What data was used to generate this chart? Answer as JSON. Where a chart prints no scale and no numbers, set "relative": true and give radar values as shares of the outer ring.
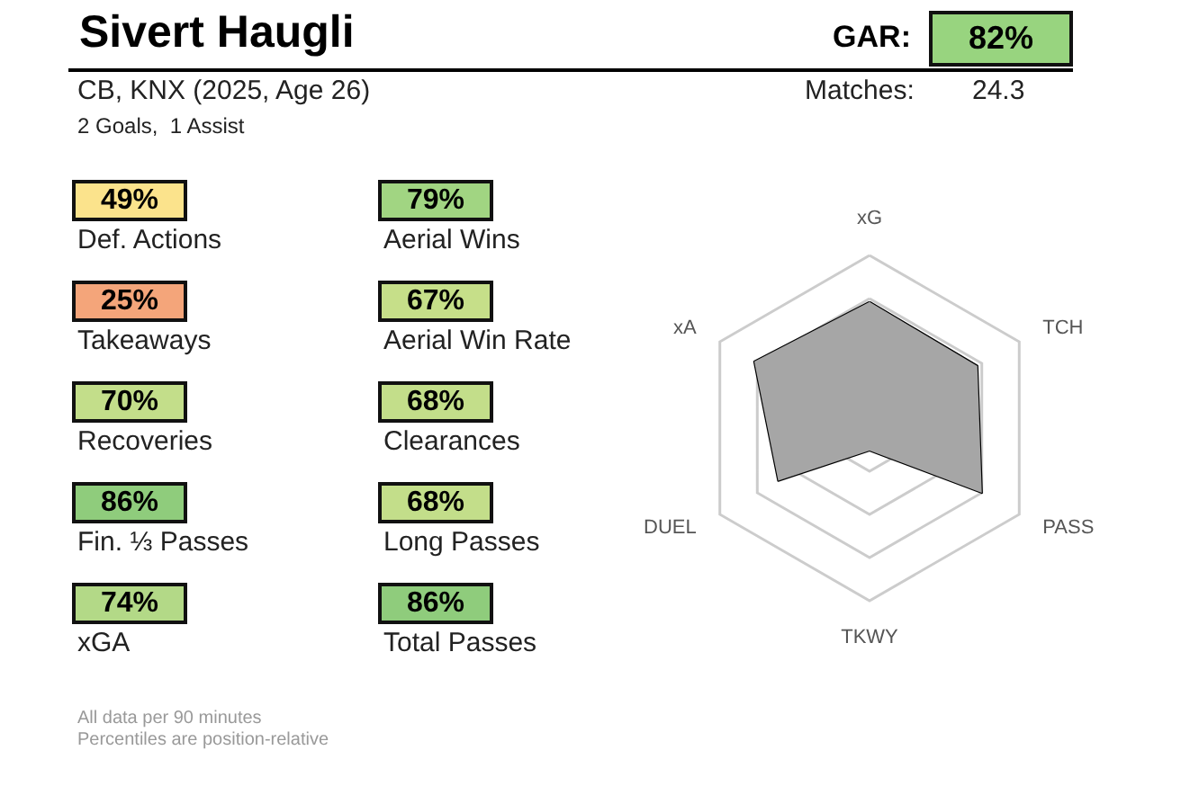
{
  "chart_data": [
    {
      "type": "other",
      "title": "Sivert Haugli",
      "subtitle": "CB, KNX (2025, Age 26)",
      "categories": [
        null,
        "Def. Actions",
        "Takeaways",
        "Recoveries",
        "Fin. ⅓ Passes",
        "xGA",
        "Aerial Wins",
        "Aerial Win Rate",
        "Clearances",
        "Long Passes",
        "Total Passes"
      ],
      "value_labels": [
        "82%",
        "49%",
        "25%",
        "70%",
        "86%",
        "74%",
        "79%",
        "67%",
        "68%",
        "68%",
        "86%"
      ],
      "colors": [
        "#98d47f",
        "#fbe38c",
        "#f4a57a",
        "#c3de8a",
        "#8fcc7c",
        "#b3d987",
        "#a1d582",
        "#c6df89",
        "#c3de8a",
        "#c3de8a",
        "#8fcc7c"
      ],
      "annotations": [
        "2 Goals,  1 Assist",
        "GAR:",
        "Matches:",
        "24.3",
        "All data per 90 minutes",
        "Percentiles are position-relative"
      ]
    },
    {
      "type": "radar",
      "categories": [
        "xG",
        "TCH",
        "PASS",
        "TKWY",
        "DUEL",
        "xA"
      ],
      "relative": true,
      "series": [
        {
          "color": "#a6a6a6",
          "values": [
            0.73,
            0.72,
            0.75,
            0.13,
            0.61,
            0.77
          ]
        }
      ]
    }
  ]
}
